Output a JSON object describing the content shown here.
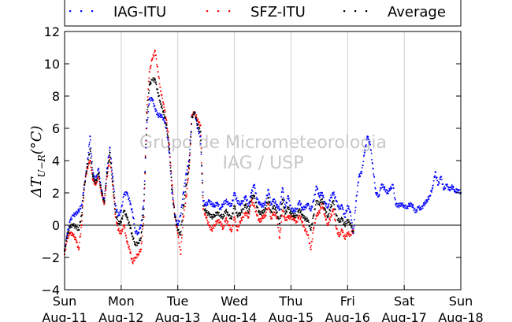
{
  "chart_data": {
    "type": "scatter",
    "ylabel": "ΔT_{U−R}(°C)",
    "ylabel_main": "ΔT",
    "ylabel_sub": "U−R",
    "ylabel_unit": "(°C)",
    "xlim": [
      0,
      7
    ],
    "ylim": [
      -4,
      12
    ],
    "y_ticks": [
      -4,
      -2,
      0,
      2,
      4,
      6,
      8,
      10,
      12
    ],
    "x_ticks": [
      {
        "pos": 0,
        "day": "Sun",
        "date": "Aug-11"
      },
      {
        "pos": 1,
        "day": "Mon",
        "date": "Aug-12"
      },
      {
        "pos": 2,
        "day": "Tue",
        "date": "Aug-13"
      },
      {
        "pos": 3,
        "day": "Wed",
        "date": "Aug-14"
      },
      {
        "pos": 4,
        "day": "Thu",
        "date": "Aug-15"
      },
      {
        "pos": 5,
        "day": "Fri",
        "date": "Aug-16"
      },
      {
        "pos": 6,
        "day": "Sat",
        "date": "Aug-17"
      },
      {
        "pos": 7,
        "day": "Sun",
        "date": "Aug-18"
      }
    ],
    "grid": "vertical",
    "zero_line": true,
    "legend_position": "top",
    "watermark": [
      "Grupo de Micrometeorologia",
      "IAG / USP"
    ],
    "series": [
      {
        "name": "IAG-ITU",
        "color": "#0000ff",
        "x": [
          0,
          0.05,
          0.1,
          0.15,
          0.2,
          0.25,
          0.3,
          0.35,
          0.4,
          0.45,
          0.5,
          0.55,
          0.6,
          0.65,
          0.7,
          0.75,
          0.8,
          0.85,
          0.9,
          0.95,
          1.0,
          1.05,
          1.1,
          1.15,
          1.2,
          1.25,
          1.3,
          1.35,
          1.4,
          1.45,
          1.5,
          1.55,
          1.6,
          1.65,
          1.7,
          1.75,
          1.8,
          1.85,
          1.9,
          1.95,
          2.0,
          2.05,
          2.1,
          2.15,
          2.2,
          2.25,
          2.3,
          2.35,
          2.4,
          2.45,
          2.5,
          2.55,
          2.6,
          2.65,
          2.7,
          2.75,
          2.8,
          2.85,
          2.9,
          2.95,
          3.0,
          3.05,
          3.1,
          3.15,
          3.2,
          3.25,
          3.3,
          3.35,
          3.4,
          3.45,
          3.5,
          3.55,
          3.6,
          3.65,
          3.7,
          3.75,
          3.8,
          3.85,
          3.9,
          3.95,
          4.0,
          4.05,
          4.1,
          4.15,
          4.2,
          4.25,
          4.3,
          4.35,
          4.4,
          4.45,
          4.5,
          4.55,
          4.6,
          4.65,
          4.7,
          4.75,
          4.8,
          4.85,
          4.9,
          4.95,
          5.0,
          5.05,
          5.1,
          5.15,
          5.2,
          5.25,
          5.3,
          5.35,
          5.4,
          5.45,
          5.5,
          5.55,
          5.6,
          5.65,
          5.7,
          5.75,
          5.8,
          5.85,
          5.9,
          5.95,
          6.0,
          6.05,
          6.1,
          6.15,
          6.2,
          6.25,
          6.3,
          6.35,
          6.4,
          6.45,
          6.5,
          6.55,
          6.6,
          6.65,
          6.7,
          6.75,
          6.8,
          6.85,
          6.9,
          6.95,
          7.0
        ],
        "y": [
          -1.5,
          -0.5,
          0.3,
          0.6,
          0.7,
          0.9,
          1.2,
          2.5,
          3.8,
          5.5,
          3.2,
          2.8,
          3.5,
          2.2,
          1.5,
          3.5,
          4.8,
          3.0,
          1.2,
          0.6,
          0.9,
          1.9,
          2.0,
          1.5,
          0.8,
          -0.4,
          -0.5,
          0.0,
          1.5,
          6.0,
          7.8,
          7.8,
          7.2,
          6.8,
          6.8,
          6.6,
          6.0,
          4.5,
          2.0,
          0.6,
          0.0,
          0.6,
          2.0,
          3.2,
          4.0,
          6.7,
          7.0,
          6.0,
          5.5,
          1.5,
          1.2,
          1.5,
          1.3,
          1.2,
          1.4,
          1.0,
          1.3,
          1.5,
          1.3,
          1.2,
          2.0,
          1.5,
          1.3,
          1.5,
          1.8,
          1.2,
          2.0,
          2.5,
          1.6,
          1.3,
          1.2,
          1.4,
          2.2,
          1.3,
          1.6,
          1.2,
          1.0,
          2.3,
          1.1,
          1.8,
          1.0,
          0.9,
          1.0,
          1.5,
          1.0,
          1.1,
          1.3,
          0.9,
          1.5,
          2.4,
          1.8,
          2.0,
          1.4,
          1.1,
          1.7,
          2.0,
          1.5,
          1.0,
          1.2,
          0.5,
          1.2,
          0.8,
          -0.5,
          1.5,
          3.0,
          3.3,
          4.5,
          5.5,
          5.0,
          3.5,
          2.0,
          1.8,
          2.5,
          2.3,
          2.0,
          2.2,
          2.5,
          1.3,
          1.2,
          1.3,
          1.2,
          1.1,
          1.3,
          1.2,
          0.8,
          1.1,
          1.0,
          1.3,
          1.5,
          1.8,
          2.3,
          3.3,
          2.5,
          3.0,
          2.2,
          2.5,
          2.2,
          2.4,
          2.1,
          2.2,
          2.0
        ]
      },
      {
        "name": "SFZ-ITU",
        "color": "#ff0000",
        "x": [
          0,
          0.05,
          0.1,
          0.15,
          0.2,
          0.25,
          0.3,
          0.35,
          0.4,
          0.45,
          0.5,
          0.55,
          0.6,
          0.65,
          0.7,
          0.75,
          0.8,
          0.85,
          0.9,
          0.95,
          1.0,
          1.05,
          1.1,
          1.15,
          1.2,
          1.25,
          1.3,
          1.35,
          1.4,
          1.45,
          1.5,
          1.55,
          1.6,
          1.65,
          1.7,
          1.75,
          1.8,
          1.85,
          1.9,
          1.95,
          2.0,
          2.05,
          2.1,
          2.15,
          2.2,
          2.25,
          2.3,
          2.35,
          2.4,
          2.45,
          2.5,
          2.55,
          2.6,
          2.65,
          2.7,
          2.75,
          2.8,
          2.85,
          2.9,
          2.95,
          3.0,
          3.05,
          3.1,
          3.15,
          3.2,
          3.25,
          3.3,
          3.35,
          3.4,
          3.45,
          3.5,
          3.55,
          3.6,
          3.65,
          3.7,
          3.75,
          3.8,
          3.85,
          3.9,
          3.95,
          4.0,
          4.05,
          4.1,
          4.15,
          4.2,
          4.25,
          4.3,
          4.35,
          4.4,
          4.45,
          4.5,
          4.55,
          4.6,
          4.65,
          4.7,
          4.75,
          4.8,
          4.85,
          4.9,
          4.95,
          5.0,
          5.05,
          5.1
        ],
        "y": [
          -1.8,
          -0.8,
          -0.5,
          -0.6,
          -0.9,
          -1.5,
          0.0,
          2.5,
          3.5,
          4.0,
          2.8,
          2.5,
          3.0,
          2.0,
          1.3,
          3.0,
          4.2,
          2.5,
          0.5,
          -0.3,
          -0.5,
          0.0,
          -1.0,
          -1.5,
          -2.3,
          -2.0,
          -1.8,
          -1.5,
          0.5,
          7.0,
          9.5,
          10.3,
          10.8,
          9.5,
          8.3,
          7.5,
          6.5,
          5.0,
          2.5,
          0.5,
          -0.5,
          -1.8,
          0.5,
          1.8,
          3.5,
          6.8,
          7.0,
          6.5,
          6.2,
          1.0,
          0.5,
          0.0,
          -0.3,
          0.0,
          0.3,
          0.2,
          -0.2,
          0.4,
          0.0,
          -0.4,
          0.5,
          -0.3,
          0.2,
          0.5,
          0.8,
          0.5,
          1.5,
          1.2,
          0.6,
          0.2,
          0.5,
          0.6,
          1.3,
          0.4,
          0.8,
          0.5,
          -0.8,
          0.9,
          0.3,
          0.5,
          0.5,
          0.4,
          0.2,
          0.6,
          0.2,
          -0.3,
          -0.6,
          -1.5,
          -0.2,
          0.6,
          0.8,
          1.3,
          0.6,
          0.0,
          0.5,
          1.0,
          -0.2,
          -0.7,
          -0.3,
          -0.8,
          -0.5,
          -0.6,
          -0.3
        ]
      },
      {
        "name": "Average",
        "color": "#000000",
        "x": [
          0,
          0.05,
          0.1,
          0.15,
          0.2,
          0.25,
          0.3,
          0.35,
          0.4,
          0.45,
          0.5,
          0.55,
          0.6,
          0.65,
          0.7,
          0.75,
          0.8,
          0.85,
          0.9,
          0.95,
          1.0,
          1.05,
          1.1,
          1.15,
          1.2,
          1.25,
          1.3,
          1.35,
          1.4,
          1.45,
          1.5,
          1.55,
          1.6,
          1.65,
          1.7,
          1.75,
          1.8,
          1.85,
          1.9,
          1.95,
          2.0,
          2.05,
          2.1,
          2.15,
          2.2,
          2.25,
          2.3,
          2.35,
          2.4,
          2.45,
          2.5,
          2.55,
          2.6,
          2.65,
          2.7,
          2.75,
          2.8,
          2.85,
          2.9,
          2.95,
          3.0,
          3.05,
          3.1,
          3.15,
          3.2,
          3.25,
          3.3,
          3.35,
          3.4,
          3.45,
          3.5,
          3.55,
          3.6,
          3.65,
          3.7,
          3.75,
          3.8,
          3.85,
          3.9,
          3.95,
          4.0,
          4.05,
          4.1,
          4.15,
          4.2,
          4.25,
          4.3,
          4.35,
          4.4,
          4.45,
          4.5,
          4.55,
          4.6,
          4.65,
          4.7,
          4.75,
          4.8,
          4.85,
          4.9,
          4.95,
          5.0,
          5.05,
          5.1
        ],
        "y": [
          -1.6,
          -0.6,
          -0.1,
          0.0,
          -0.1,
          -0.3,
          0.6,
          2.5,
          3.6,
          4.7,
          3.0,
          2.6,
          3.2,
          2.1,
          1.4,
          3.2,
          4.5,
          2.7,
          0.8,
          0.1,
          0.2,
          0.9,
          0.5,
          0.0,
          -0.7,
          -1.2,
          -1.1,
          -0.8,
          1.0,
          6.5,
          8.7,
          9.0,
          9.0,
          8.2,
          7.5,
          7.0,
          6.2,
          4.7,
          2.2,
          0.5,
          -0.3,
          -0.6,
          1.2,
          2.5,
          3.7,
          6.7,
          7.0,
          6.2,
          5.8,
          1.2,
          0.8,
          0.7,
          0.5,
          0.6,
          0.8,
          0.6,
          0.5,
          0.9,
          0.6,
          0.4,
          1.2,
          0.6,
          0.7,
          1.0,
          1.3,
          0.8,
          1.7,
          1.8,
          1.1,
          0.7,
          0.8,
          1.0,
          1.7,
          0.8,
          1.2,
          0.8,
          0.1,
          1.6,
          0.7,
          1.1,
          0.7,
          0.6,
          0.6,
          1.0,
          0.6,
          0.4,
          0.3,
          -0.3,
          0.6,
          1.5,
          1.3,
          1.6,
          1.0,
          0.5,
          1.1,
          1.5,
          0.6,
          0.2,
          0.4,
          0.0,
          0.3,
          0.1,
          -0.4
        ]
      }
    ]
  }
}
